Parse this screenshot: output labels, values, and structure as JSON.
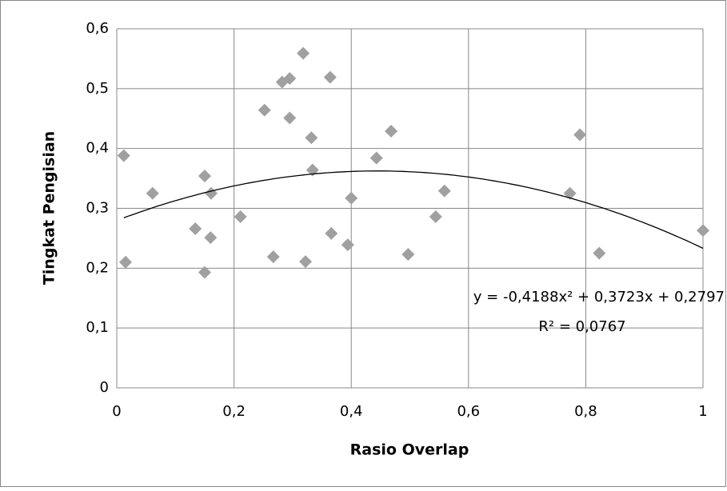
{
  "chart_data": {
    "type": "scatter",
    "x_label": "Rasio Overlap",
    "y_label": "Tingkat Pengisian",
    "series": [
      {
        "color": "#a0a0a0",
        "x": [
          0.012,
          0.015,
          0.061,
          0.134,
          0.15,
          0.15,
          0.161,
          0.16,
          0.211,
          0.252,
          0.267,
          0.282,
          0.295,
          0.295,
          0.318,
          0.322,
          0.332,
          0.334,
          0.364,
          0.366,
          0.394,
          0.4,
          0.443,
          0.468,
          0.497,
          0.544,
          0.559,
          0.79,
          0.773,
          0.823,
          1.0
        ],
        "values": [
          0.388,
          0.21,
          0.325,
          0.266,
          0.354,
          0.193,
          0.325,
          0.251,
          0.286,
          0.464,
          0.219,
          0.511,
          0.517,
          0.451,
          0.559,
          0.211,
          0.418,
          0.364,
          0.519,
          0.258,
          0.239,
          0.317,
          0.384,
          0.429,
          0.223,
          0.286,
          0.329,
          0.423,
          0.325,
          0.225,
          0.263
        ]
      }
    ],
    "trendline": {
      "coefficients": [
        -0.4188,
        0.3723,
        0.2797
      ],
      "xlim": [
        0.012,
        1.0
      ],
      "label": "y = -0,4188x² + 0,3723x + 0,2797",
      "r2_label": "R² = 0,0767"
    },
    "xlim": [
      0,
      1
    ],
    "ylim": [
      0,
      0.6
    ],
    "xticks": [
      0,
      {
        "value": 0.2,
        "label": "0,2"
      },
      {
        "value": 0.4,
        "label": "0,4"
      },
      {
        "value": 0.6,
        "label": "0,6"
      },
      {
        "value": 0.8,
        "label": "0,8"
      },
      1
    ],
    "yticks": [
      0,
      {
        "value": 0.1,
        "label": "0,1"
      },
      {
        "value": 0.2,
        "label": "0,2"
      },
      {
        "value": 0.3,
        "label": "0,3"
      },
      {
        "value": 0.4,
        "label": "0,4"
      },
      {
        "value": 0.5,
        "label": "0,5"
      },
      {
        "value": 0.6,
        "label": "0,6"
      }
    ],
    "grid": true
  }
}
